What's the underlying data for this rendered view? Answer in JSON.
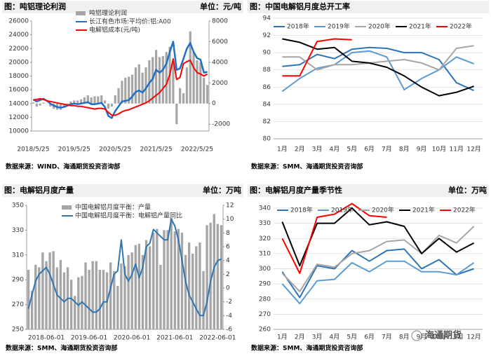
{
  "chart_data": [
    {
      "type": "combo",
      "title": "图：吨铝理论利润",
      "unit_label": "单位：元/吨",
      "source": "数据来源：WIND、海通期货投资咨询部",
      "categories": [
        "2018/5/25",
        null,
        null,
        null,
        null,
        null,
        null,
        null,
        null,
        null,
        null,
        null,
        "2019/5/25",
        null,
        null,
        null,
        null,
        null,
        null,
        null,
        null,
        null,
        null,
        null,
        "2020/5/25",
        null,
        null,
        null,
        null,
        null,
        null,
        null,
        null,
        null,
        null,
        null,
        "2021/5/25",
        null,
        null,
        null,
        null,
        null,
        null,
        null,
        null,
        null,
        null,
        null,
        "2022/5/25",
        null,
        null,
        null
      ],
      "ylim": [
        10000,
        26000
      ],
      "yticks": [
        10000,
        12000,
        14000,
        16000,
        18000,
        20000,
        22000,
        24000,
        26000
      ],
      "y2lim": [
        -2667,
        8000
      ],
      "y2ticks": [
        -2000,
        0,
        2000,
        4000,
        6000,
        8000
      ],
      "grid": false,
      "series": [
        {
          "name": "吨铝理论利润",
          "type": "bar",
          "axis": "y2",
          "color": "#a6a6a6",
          "values": [
            100,
            -300,
            -200,
            100,
            0,
            -300,
            -500,
            -600,
            -600,
            -400,
            -100,
            200,
            300,
            300,
            400,
            600,
            800,
            600,
            700,
            700,
            800,
            300,
            -500,
            -300,
            800,
            1500,
            2200,
            2500,
            2600,
            2800,
            3500,
            3800,
            3000,
            3500,
            4200,
            4500,
            5200,
            4500,
            4600,
            5000,
            5500,
            4000,
            -2000,
            1500,
            1000,
            3500,
            7000,
            5000,
            4200,
            4000,
            2500,
            1800
          ]
        },
        {
          "name": "长江有色市场:平均价:铝:A00",
          "type": "line",
          "color": "#1f6fc6",
          "width": 2.5,
          "values": [
            14600,
            14300,
            14500,
            14700,
            14400,
            14000,
            13700,
            13500,
            13400,
            13500,
            13700,
            13900,
            14000,
            13900,
            14000,
            14100,
            14200,
            13900,
            13900,
            14000,
            14100,
            13500,
            12200,
            11900,
            12900,
            13600,
            14300,
            14400,
            14500,
            15000,
            15700,
            15900,
            15600,
            16200,
            17000,
            17600,
            18900,
            18500,
            18900,
            19800,
            21500,
            23000,
            18900,
            19100,
            20500,
            22000,
            22800,
            21500,
            20600,
            20400,
            18500,
            18600
          ]
        },
        {
          "name": "电解铝成本(元/吨)",
          "type": "line",
          "color": "#ff0000",
          "width": 2,
          "values": [
            14500,
            14600,
            14700,
            14600,
            14400,
            14300,
            14200,
            14100,
            14000,
            13900,
            13800,
            13700,
            13700,
            13600,
            13600,
            13500,
            13400,
            13300,
            13200,
            13300,
            13300,
            13200,
            12700,
            12300,
            12300,
            12500,
            12800,
            13000,
            13100,
            13300,
            13500,
            13700,
            13900,
            14100,
            14400,
            14800,
            15200,
            15600,
            16200,
            16800,
            18200,
            20500,
            17500,
            17800,
            19800,
            20100,
            20300,
            19200,
            18500,
            18300,
            18000,
            18300
          ]
        }
      ]
    },
    {
      "type": "line",
      "title": "图：中国电解铝月度总开工率",
      "source": "数据来源：SMM、海通期货投资咨询部",
      "categories": [
        "1月",
        "2月",
        "3月",
        "4月",
        "5月",
        "6月",
        "7月",
        "8月",
        "9月",
        "10月",
        "11月",
        "12月"
      ],
      "ylim": [
        80,
        94
      ],
      "yticks": [
        80,
        82,
        84,
        86,
        88,
        90,
        92,
        94
      ],
      "grid": true,
      "series": [
        {
          "name": "2018年",
          "color": "#2e74b5",
          "values": [
            88.4,
            88.6,
            89.8,
            89.3,
            90.4,
            90.6,
            90.5,
            90,
            90,
            89.2,
            86.5,
            85.6
          ]
        },
        {
          "name": "2019年",
          "color": "#5b9bd5",
          "values": [
            85.5,
            87,
            88.2,
            88.6,
            90,
            90.2,
            89.5,
            85.7,
            87,
            88,
            89.5,
            88.7
          ]
        },
        {
          "name": "2020年",
          "color": "#a6a6a6",
          "values": [
            89.5,
            89.5,
            88,
            88.6,
            88.6,
            88.8,
            89,
            89.2,
            88.8,
            88,
            90.5,
            90.8
          ]
        },
        {
          "name": "2021年",
          "color": "#000000",
          "values": [
            91.6,
            91.2,
            90.4,
            90.6,
            89,
            88.8,
            88.3,
            87.3,
            86,
            85,
            85.4,
            86.1
          ]
        },
        {
          "name": "2022年",
          "color": "#ff0000",
          "values": [
            87.3,
            87.3,
            91.3,
            91.6,
            91.5,
            null,
            null,
            null,
            null,
            null,
            null,
            null
          ]
        }
      ]
    },
    {
      "type": "combo",
      "title": "图：电解铝月度产量",
      "unit_label": "单位：万吨",
      "source": "数据来源：SMM、海通期货投资咨询部",
      "categories": [
        null,
        null,
        null,
        null,
        null,
        "2018-06-01",
        null,
        null,
        null,
        null,
        null,
        null,
        null,
        null,
        null,
        null,
        null,
        "2019-06-01",
        null,
        null,
        null,
        null,
        null,
        null,
        null,
        null,
        null,
        null,
        null,
        "2020-06-01",
        null,
        null,
        null,
        null,
        null,
        null,
        null,
        null,
        null,
        null,
        null,
        "2021-06-01",
        null,
        null,
        null,
        null,
        null,
        null,
        null,
        null,
        null,
        null,
        null,
        "2022-06-01",
        null
      ],
      "ylim": [
        250,
        350
      ],
      "yticks": [
        250,
        270,
        290,
        310,
        330,
        350
      ],
      "y2lim": [
        -6,
        12
      ],
      "y2ticks": [
        -6,
        -4,
        -2,
        0,
        2,
        4,
        6,
        8,
        10,
        12
      ],
      "grid": false,
      "series": [
        {
          "name": "中国电解铝月度平衡：产量",
          "type": "bar",
          "color": "#a6a6a6",
          "values": [
            298,
            281,
            302,
            300,
            312,
            305,
            312,
            313,
            300,
            306,
            296,
            300,
            290,
            277,
            292,
            293,
            304,
            298,
            305,
            305,
            298,
            298,
            296,
            304,
            297,
            285,
            303,
            301,
            310,
            312,
            318,
            319,
            310,
            322,
            317,
            328,
            331,
            302,
            330,
            330,
            340,
            329,
            331,
            328,
            310,
            320,
            311,
            317,
            320,
            297,
            334,
            336,
            343,
            335,
            334
          ]
        },
        {
          "name": "中国电解铝月度平衡：电解铝产量同比",
          "type": "line",
          "axis": "y2",
          "color": "#2e75b6",
          "width": 2,
          "values": [
            -3,
            -1,
            1,
            2,
            2.5,
            3,
            2,
            0.5,
            -1,
            -1.5,
            -2,
            -1.5,
            -1.5,
            -2,
            -2.5,
            -2,
            -2.5,
            -3,
            -3.5,
            -3.5,
            -3,
            -2,
            -2,
            0,
            2,
            2.5,
            7,
            2,
            1,
            2,
            3.5,
            1.5,
            3,
            6,
            6.5,
            8.5,
            8,
            7.5,
            7,
            7,
            10,
            9,
            7,
            4,
            1,
            -1,
            -2,
            -3,
            -4,
            -4,
            -2,
            1,
            3,
            4,
            4.2
          ]
        }
      ]
    },
    {
      "type": "line",
      "title": "图：电解铝月度产量季节性",
      "unit_label": "单位：万吨",
      "source": "数据来源：SMM、海通期货投资咨询部",
      "categories": [
        "1月",
        "2月",
        "3月",
        "4月",
        "5月",
        "6月",
        "7月",
        "8月",
        "9月",
        "10月",
        "11月",
        "12月"
      ],
      "ylim": [
        260,
        340
      ],
      "yticks": [
        260,
        270,
        280,
        290,
        300,
        310,
        320,
        330,
        340
      ],
      "grid": true,
      "series": [
        {
          "name": "2018年",
          "color": "#2e74b5",
          "values": [
            298,
            281,
            302,
            300,
            312,
            305,
            312,
            313,
            300,
            306,
            296,
            300
          ]
        },
        {
          "name": "2019年",
          "color": "#5b9bd5",
          "values": [
            290,
            277,
            292,
            293,
            304,
            298,
            305,
            305,
            298,
            298,
            296,
            304
          ]
        },
        {
          "name": "2020年",
          "color": "#a6a6a6",
          "values": [
            297,
            285,
            303,
            301,
            310,
            312,
            318,
            319,
            310,
            322,
            317,
            328
          ]
        },
        {
          "name": "2021年",
          "color": "#000000",
          "values": [
            331,
            302,
            330,
            330,
            340,
            329,
            331,
            328,
            310,
            320,
            311,
            317
          ]
        },
        {
          "name": "2022年",
          "color": "#ff0000",
          "values": [
            320,
            297,
            334,
            336,
            343,
            335,
            334,
            null,
            null,
            null,
            null,
            null
          ]
        }
      ]
    }
  ],
  "watermark": "海通期货"
}
